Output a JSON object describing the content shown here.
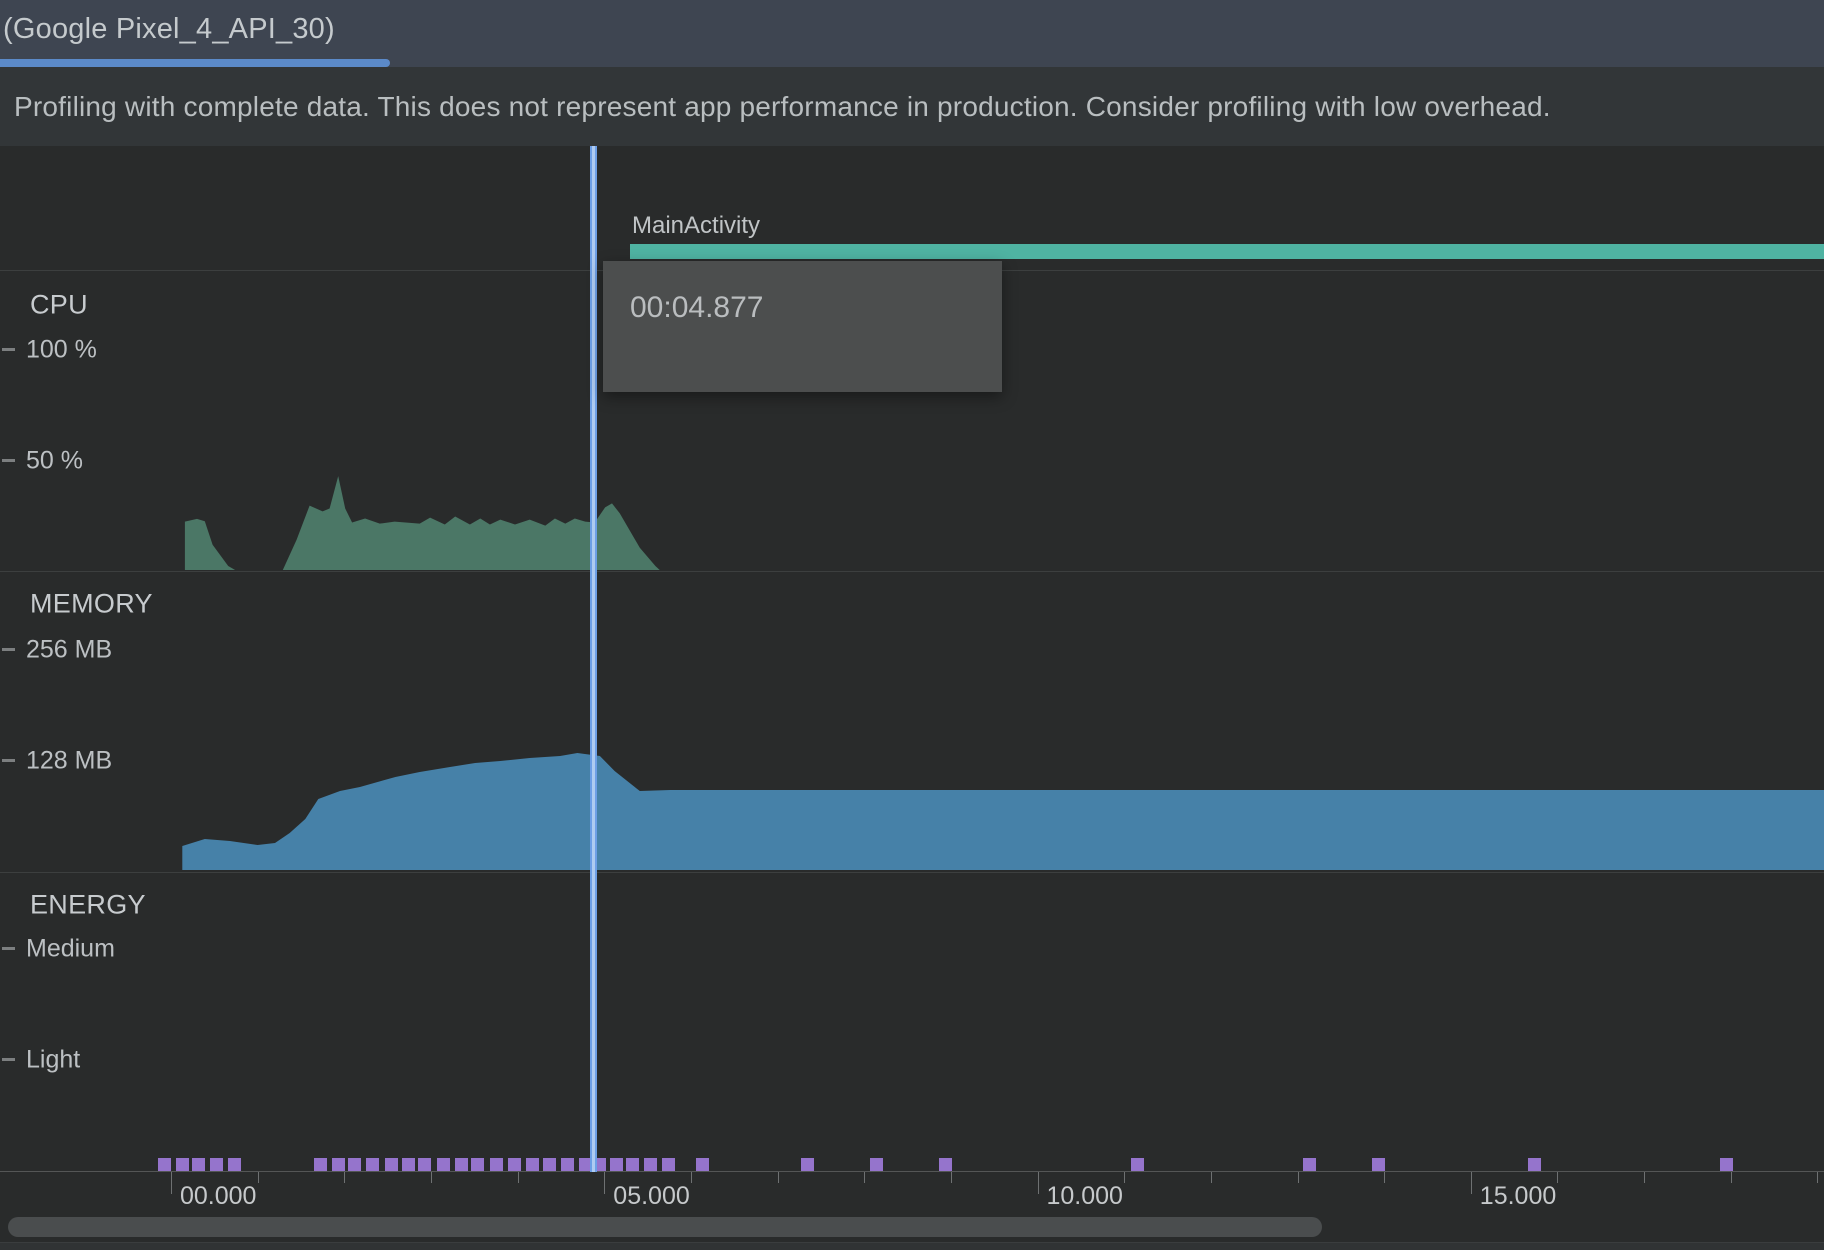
{
  "tab": {
    "label": "(Google Pixel_4_API_30)"
  },
  "banner": {
    "text": "Profiling with complete data. This does not represent app performance in production. Consider profiling with low overhead."
  },
  "activity": {
    "name": "MainActivity"
  },
  "tooltip": {
    "time": "00:04.877"
  },
  "sections": {
    "cpu": {
      "title": "CPU",
      "ticks": [
        {
          "label": "100 %"
        },
        {
          "label": "50 %"
        }
      ]
    },
    "memory": {
      "title": "MEMORY",
      "ticks": [
        {
          "label": "256 MB"
        },
        {
          "label": "128 MB"
        }
      ]
    },
    "energy": {
      "title": "ENERGY",
      "ticks": [
        {
          "label": "Medium"
        },
        {
          "label": "Light"
        }
      ]
    }
  },
  "axis": {
    "labels": [
      {
        "t": 0,
        "text": "00.000"
      },
      {
        "t": 5,
        "text": "05.000"
      },
      {
        "t": 10,
        "text": "10.000"
      },
      {
        "t": 15,
        "text": "15.000"
      }
    ],
    "minor_step_seconds": 1,
    "range_seconds": [
      0,
      19
    ]
  },
  "cursor": {
    "t": 4.877
  },
  "colors": {
    "tabBarBg": "#3e4551",
    "tabText": "#c5cacd",
    "tabUnderline": "#5b8ac9",
    "bannerBg": "#323638",
    "bannerText": "#b9bec0",
    "chartBg": "#292b2b",
    "divider": "#3c3f3f",
    "sectionTitle": "#c7cbce",
    "tickText": "#bcc0c3",
    "tickDash": "#7c7f80",
    "cpuGreen": "#4b7766",
    "memBlue": "#4681a8",
    "tealBar": "#4fb3a2",
    "activityText": "#c0c4c6",
    "eventPurple": "#9574cc",
    "cursorBlue": "#6d9fe6",
    "cursorCore": "#aecbf1",
    "tooltipBg": "#4c4e4e",
    "tooltipText": "#babdbf",
    "axisLine": "#545656",
    "axisTick": "#6e7172",
    "axisLabel": "#c6c9cb",
    "scrollThumb": "#4a4d4e",
    "bottomStripBg": "#303334",
    "bottomStripBorder": "#3a3d3e"
  },
  "chart_data": [
    {
      "id": "cpu",
      "type": "area",
      "name": "CPU usage",
      "unit": "%",
      "ylim": [
        0,
        100
      ],
      "yticks": [
        100,
        50
      ],
      "points": [
        [
          0.16,
          0
        ],
        [
          0.16,
          21.8
        ],
        [
          0.3,
          23.0
        ],
        [
          0.39,
          22.0
        ],
        [
          0.48,
          11.4
        ],
        [
          0.66,
          1.8
        ],
        [
          0.74,
          0
        ],
        [
          1.29,
          0
        ],
        [
          1.45,
          13.6
        ],
        [
          1.6,
          29.0
        ],
        [
          1.75,
          26.4
        ],
        [
          1.83,
          27.7
        ],
        [
          1.93,
          42.3
        ],
        [
          2.01,
          27.7
        ],
        [
          2.09,
          21.4
        ],
        [
          2.24,
          23.2
        ],
        [
          2.41,
          20.9
        ],
        [
          2.58,
          21.8
        ],
        [
          2.87,
          20.9
        ],
        [
          2.99,
          23.6
        ],
        [
          3.16,
          20.5
        ],
        [
          3.28,
          24.1
        ],
        [
          3.45,
          20.5
        ],
        [
          3.57,
          23.2
        ],
        [
          3.68,
          20.5
        ],
        [
          3.8,
          22.7
        ],
        [
          3.97,
          20.5
        ],
        [
          4.14,
          22.7
        ],
        [
          4.32,
          20.0
        ],
        [
          4.43,
          23.2
        ],
        [
          4.55,
          20.9
        ],
        [
          4.66,
          23.2
        ],
        [
          4.78,
          21.8
        ],
        [
          4.89,
          21.4
        ],
        [
          5.01,
          28.2
        ],
        [
          5.09,
          30.0
        ],
        [
          5.18,
          25.5
        ],
        [
          5.41,
          10.0
        ],
        [
          5.59,
          1.8
        ],
        [
          5.64,
          0
        ]
      ]
    },
    {
      "id": "memory",
      "type": "area",
      "name": "Memory",
      "unit": "MB",
      "ylim": [
        0,
        256
      ],
      "yticks": [
        256,
        128
      ],
      "points": [
        [
          0.13,
          0
        ],
        [
          0.13,
          27.7
        ],
        [
          0.39,
          35.7
        ],
        [
          0.68,
          33.4
        ],
        [
          1.0,
          28.8
        ],
        [
          1.2,
          31.1
        ],
        [
          1.37,
          42.7
        ],
        [
          1.55,
          58.8
        ],
        [
          1.7,
          81.9
        ],
        [
          1.95,
          91.1
        ],
        [
          2.18,
          95.7
        ],
        [
          2.59,
          107.2
        ],
        [
          2.87,
          113.0
        ],
        [
          3.22,
          118.8
        ],
        [
          3.51,
          123.4
        ],
        [
          3.8,
          125.7
        ],
        [
          4.14,
          129.2
        ],
        [
          4.49,
          131.5
        ],
        [
          4.69,
          134.9
        ],
        [
          4.95,
          131.5
        ],
        [
          5.12,
          114.2
        ],
        [
          5.41,
          91.1
        ],
        [
          5.76,
          92.2
        ],
        [
          19.1,
          92.2
        ]
      ]
    },
    {
      "id": "energy_events",
      "type": "scatter",
      "name": "Energy events",
      "marker": "square",
      "t_values": [
        -0.07,
        0.13,
        0.32,
        0.53,
        0.73,
        1.73,
        1.93,
        2.12,
        2.33,
        2.54,
        2.74,
        2.93,
        3.14,
        3.35,
        3.54,
        3.76,
        3.96,
        4.17,
        4.37,
        4.57,
        4.78,
        4.95,
        5.14,
        5.33,
        5.53,
        5.74,
        6.13,
        7.34,
        8.14,
        8.94,
        11.15,
        13.14,
        13.94,
        15.73,
        17.95
      ]
    },
    {
      "id": "activity_bar",
      "type": "range",
      "name": "MainActivity lifetime",
      "start_t": 5.3,
      "end_t": 19.1
    }
  ]
}
